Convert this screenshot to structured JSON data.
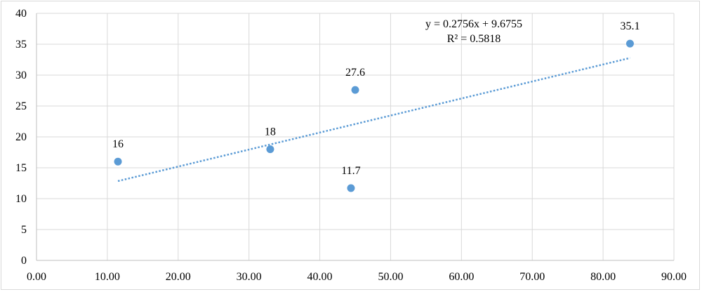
{
  "chart_data": {
    "type": "scatter",
    "title": "",
    "xlabel": "",
    "ylabel": "",
    "xlim": [
      0,
      90
    ],
    "ylim": [
      0,
      40
    ],
    "x_ticks": [
      "0.00",
      "10.00",
      "20.00",
      "30.00",
      "40.00",
      "50.00",
      "60.00",
      "70.00",
      "80.00",
      "90.00"
    ],
    "y_ticks": [
      "0",
      "5",
      "10",
      "15",
      "20",
      "25",
      "30",
      "35",
      "40"
    ],
    "grid": true,
    "series": [
      {
        "points": [
          {
            "x": 11.5,
            "y": 16,
            "label": "16"
          },
          {
            "x": 33.0,
            "y": 18,
            "label": "18"
          },
          {
            "x": 45.0,
            "y": 27.6,
            "label": "27.6"
          },
          {
            "x": 44.4,
            "y": 11.7,
            "label": "11.7"
          },
          {
            "x": 83.8,
            "y": 35.1,
            "label": "35.1"
          }
        ],
        "color": "#5b9bd5"
      }
    ],
    "trendline": {
      "type": "linear",
      "slope": 0.2756,
      "intercept": 9.6755,
      "x_range": [
        11.5,
        83.8
      ],
      "color": "#5b9bd5",
      "style": "dotted",
      "equation": "y = 0.2756x + 9.6755",
      "r_squared": "R² = 0.5818"
    },
    "gridline_color": "#d9d9d9",
    "axis_color": "#bfbfbf"
  }
}
